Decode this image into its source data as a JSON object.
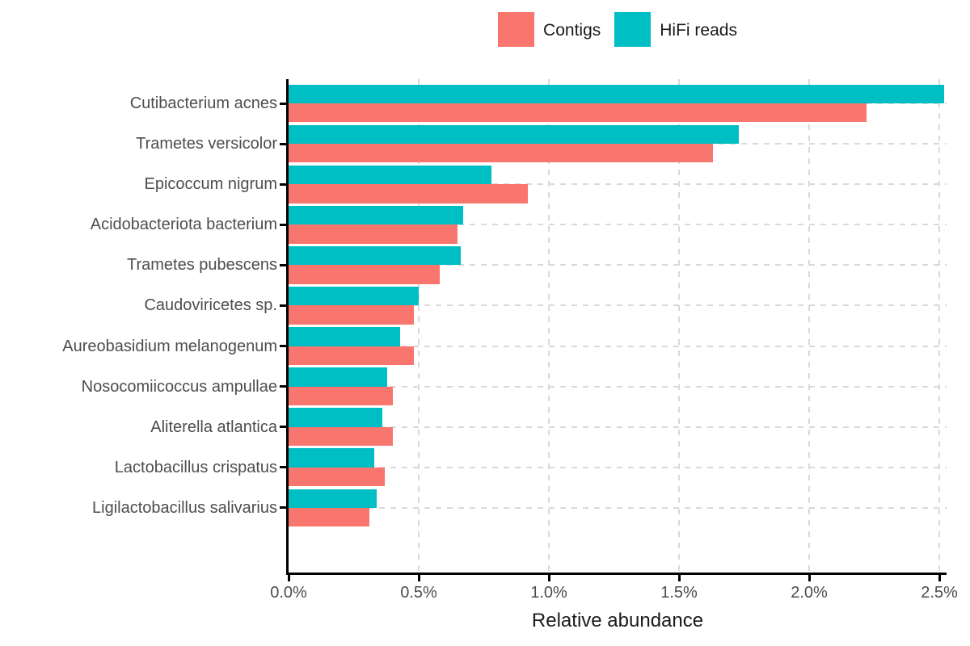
{
  "legend": {
    "position": "top",
    "items": [
      {
        "label": "Contigs",
        "color": "#F8766D"
      },
      {
        "label": "HiFi reads",
        "color": "#00BFC4"
      }
    ]
  },
  "chart_data": {
    "type": "bar",
    "orientation": "horizontal",
    "title": "",
    "xlabel": "Relative abundance",
    "ylabel": "",
    "xlim": [
      0,
      2.53
    ],
    "x_tick_labels": [
      "0.0%",
      "0.5%",
      "1.0%",
      "1.5%",
      "2.0%",
      "2.5%"
    ],
    "x_tick_values": [
      0,
      0.5,
      1.0,
      1.5,
      2.0,
      2.5
    ],
    "grid": "dashed, vertical at every x tick and horizontal at every category center",
    "legend_position": "top center",
    "units": "percent",
    "categories": [
      "Cutibacterium acnes",
      "Trametes versicolor",
      "Epicoccum nigrum",
      "Acidobacteriota bacterium",
      "Trametes pubescens",
      "Caudoviricetes sp.",
      "Aureobasidium melanogenum",
      "Nosocomiicoccus ampullae",
      "Aliterella atlantica",
      "Lactobacillus crispatus",
      "Ligilactobacillus salivarius"
    ],
    "series": [
      {
        "name": "Contigs",
        "color": "#F8766D",
        "values": [
          2.22,
          1.63,
          0.92,
          0.65,
          0.58,
          0.48,
          0.48,
          0.4,
          0.4,
          0.37,
          0.31
        ]
      },
      {
        "name": "HiFi reads",
        "color": "#00BFC4",
        "values": [
          2.52,
          1.73,
          0.78,
          0.67,
          0.66,
          0.5,
          0.43,
          0.38,
          0.36,
          0.33,
          0.34
        ]
      }
    ],
    "group_order_top_to_bottom": [
      "HiFi reads",
      "Contigs"
    ]
  },
  "colors": {
    "background": "#FFFFFF",
    "axis_line": "#000000",
    "grid_line": "#D9D9D9",
    "tick_label": "#4D4D4D",
    "category_label": "#4D4D4D",
    "axis_title": "#1A1A1A",
    "legend_text": "#1A1A1A"
  }
}
